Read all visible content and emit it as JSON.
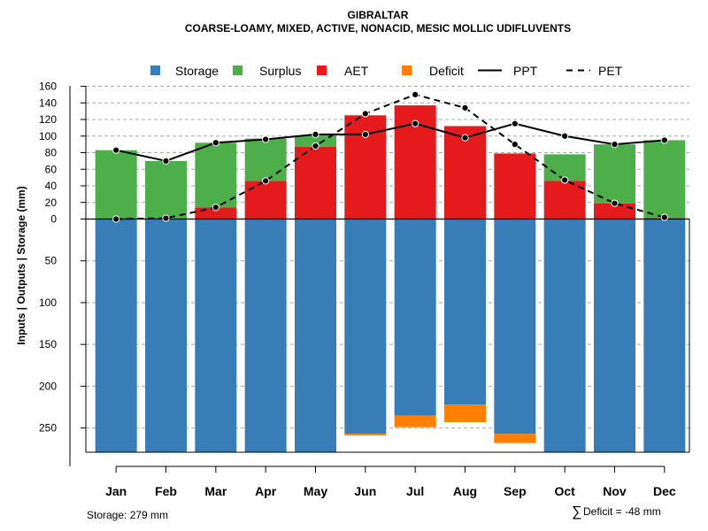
{
  "chart_data": {
    "type": "bar",
    "title": "GIBRALTAR",
    "subtitle": "COARSE-LOAMY, MIXED, ACTIVE, NONACID, MESIC MOLLIC UDIFLUVENTS",
    "ylabel": "Inputs | Outputs | Storage     (mm)",
    "categories": [
      "Jan",
      "Feb",
      "Mar",
      "Apr",
      "May",
      "Jun",
      "Jul",
      "Aug",
      "Sep",
      "Oct",
      "Nov",
      "Dec"
    ],
    "upper_ylim": [
      0,
      160
    ],
    "upper_ticks": [
      "160",
      "140",
      "120",
      "100",
      "80",
      "60",
      "40",
      "20",
      "0"
    ],
    "lower_ylim": [
      0,
      279
    ],
    "lower_ticks": [
      "50",
      "100",
      "150",
      "200",
      "250"
    ],
    "series": [
      {
        "name": "AET",
        "values": [
          0,
          0,
          14,
          46,
          87,
          125,
          137,
          112,
          79,
          46,
          19,
          1
        ]
      },
      {
        "name": "Surplus",
        "values": [
          83,
          70,
          78,
          51,
          14,
          0,
          0,
          0,
          0,
          32,
          71,
          94
        ]
      },
      {
        "name": "Storage",
        "values": [
          279,
          279,
          279,
          279,
          279,
          257,
          235,
          222,
          257,
          279,
          279,
          279
        ]
      },
      {
        "name": "Deficit",
        "values": [
          0,
          0,
          0,
          0,
          0,
          2,
          14,
          21,
          11,
          0,
          0,
          0
        ]
      },
      {
        "name": "PPT",
        "values": [
          83,
          70,
          92,
          96,
          102,
          102,
          115,
          98,
          115,
          100,
          90,
          95
        ]
      },
      {
        "name": "PET",
        "values": [
          0,
          1,
          14,
          46,
          88,
          127,
          150,
          134,
          90,
          47,
          19,
          2
        ]
      }
    ],
    "legend": [
      {
        "label": "Storage",
        "kind": "box",
        "color": "#377EB8"
      },
      {
        "label": "Surplus",
        "kind": "box",
        "color": "#4DAF4A"
      },
      {
        "label": "AET",
        "kind": "box",
        "color": "#E41A1C"
      },
      {
        "label": "Deficit",
        "kind": "box",
        "color": "#FF7F00"
      },
      {
        "label": "PPT",
        "kind": "solid"
      },
      {
        "label": "PET",
        "kind": "dashed"
      }
    ],
    "legend_position": "top",
    "grid": true,
    "colors": {
      "storage": "#377EB8",
      "surplus": "#4DAF4A",
      "aet": "#E41A1C",
      "deficit": "#FF7F00"
    }
  },
  "footer": {
    "storage_text": "Storage: 279 mm",
    "deficit_symbol": "∑",
    "deficit_text": "Deficit = -48 mm"
  }
}
